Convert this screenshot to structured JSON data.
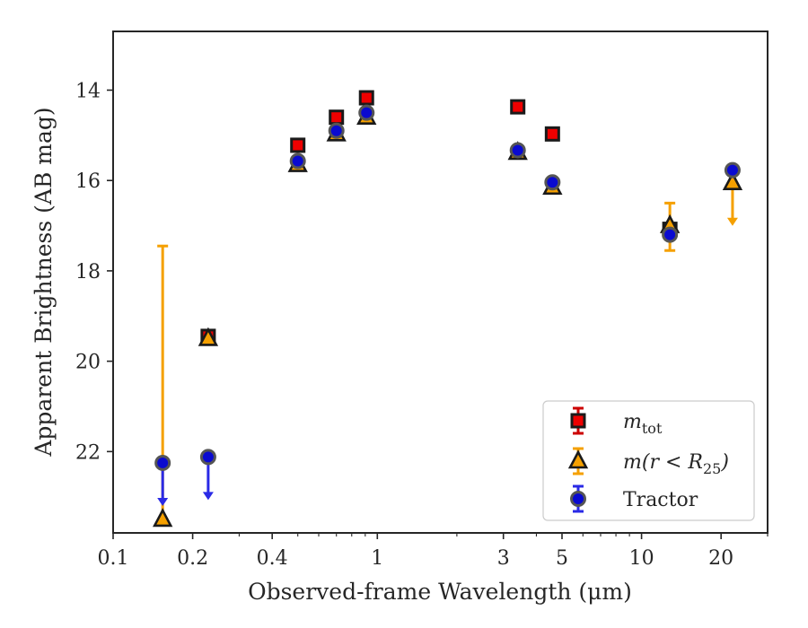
{
  "chart_data": {
    "type": "scatter",
    "title": "",
    "xlabel": "Observed-frame Wavelength (μm)",
    "ylabel": "Apparent Brightness (AB mag)",
    "x_scale": "log",
    "xlim": [
      0.1,
      30
    ],
    "ylim": [
      23.8,
      12.7
    ],
    "y_inverted": true,
    "grid": false,
    "legend_position": "lower-right",
    "x_ticks": [
      {
        "value": 0.1,
        "label": "0.1"
      },
      {
        "value": 0.2,
        "label": "0.2"
      },
      {
        "value": 0.4,
        "label": "0.4"
      },
      {
        "value": 1,
        "label": "1"
      },
      {
        "value": 3,
        "label": "3"
      },
      {
        "value": 5,
        "label": "5"
      },
      {
        "value": 10,
        "label": "10"
      },
      {
        "value": 20,
        "label": "20"
      }
    ],
    "y_ticks": [
      {
        "value": 14,
        "label": "14"
      },
      {
        "value": 16,
        "label": "16"
      },
      {
        "value": 18,
        "label": "18"
      },
      {
        "value": 20,
        "label": "20"
      },
      {
        "value": 22,
        "label": "22"
      }
    ],
    "series": [
      {
        "name_main": "m",
        "name_sub": "tot",
        "marker": "square",
        "fill": "#ee0000",
        "edge": "#1a1a1a",
        "error_color": "#cc0000",
        "points": [
          {
            "x": 0.229,
            "y": 19.45
          },
          {
            "x": 0.5,
            "y": 15.22
          },
          {
            "x": 0.7,
            "y": 14.6
          },
          {
            "x": 0.91,
            "y": 14.17
          },
          {
            "x": 3.4,
            "y": 14.37
          },
          {
            "x": 4.6,
            "y": 14.97
          },
          {
            "x": 12.8,
            "y": 17.08
          }
        ]
      },
      {
        "name_main": "m(r < R",
        "name_sub": "25",
        "name_tail": ")",
        "marker": "triangle",
        "fill": "#f5a000",
        "edge": "#1a1a1a",
        "error_color": "#f5a000",
        "points": [
          {
            "x": 0.154,
            "y": 23.5,
            "err_low": 17.45,
            "err_high": 23.5
          },
          {
            "x": 0.229,
            "y": 19.5
          },
          {
            "x": 0.5,
            "y": 15.65
          },
          {
            "x": 0.7,
            "y": 14.97
          },
          {
            "x": 0.91,
            "y": 14.6
          },
          {
            "x": 3.4,
            "y": 15.38
          },
          {
            "x": 4.6,
            "y": 16.15
          },
          {
            "x": 12.8,
            "y": 17.0,
            "err_low": 16.5,
            "err_high": 17.55
          },
          {
            "x": 22.1,
            "y": 16.05,
            "upper_limit": true
          }
        ]
      },
      {
        "name": "Tractor",
        "marker": "circle",
        "fill": "#0a0ad0",
        "edge": "#555555",
        "error_color": "#2a2ae6",
        "points": [
          {
            "x": 0.154,
            "y": 22.25,
            "upper_limit": true
          },
          {
            "x": 0.229,
            "y": 22.12,
            "upper_limit": true
          },
          {
            "x": 0.5,
            "y": 15.57
          },
          {
            "x": 0.7,
            "y": 14.9
          },
          {
            "x": 0.91,
            "y": 14.5
          },
          {
            "x": 3.4,
            "y": 15.33
          },
          {
            "x": 4.6,
            "y": 16.04
          },
          {
            "x": 12.8,
            "y": 17.2
          },
          {
            "x": 22.1,
            "y": 15.77
          }
        ]
      }
    ]
  }
}
